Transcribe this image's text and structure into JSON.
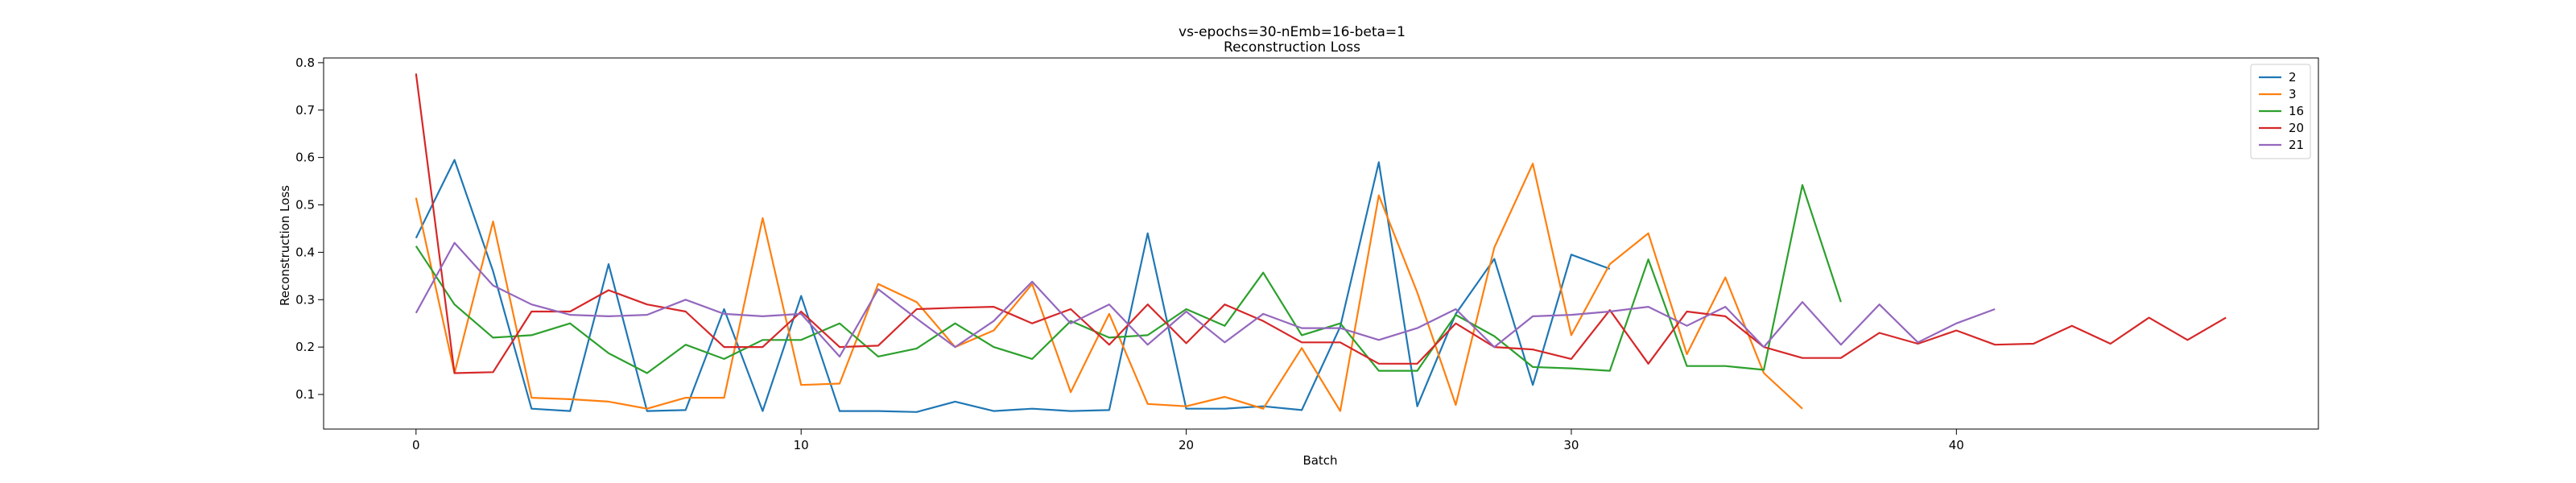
{
  "chart_data": {
    "type": "line",
    "title": "vs-epochs=30-nEmb=16-beta=1",
    "subtitle": "Reconstruction Loss",
    "xlabel": "Batch",
    "ylabel": "Reconstruction Loss",
    "xlim": [
      -2.4,
      49.4
    ],
    "ylim": [
      0.027,
      0.81
    ],
    "xticks": [
      0,
      10,
      20,
      30,
      40
    ],
    "yticks": [
      0.1,
      0.2,
      0.3,
      0.4,
      0.5,
      0.6,
      0.7,
      0.8
    ],
    "grid": false,
    "legend_position": "top-right",
    "series": [
      {
        "name": "2",
        "color": "#1f77b4",
        "values": [
          0.43,
          0.595,
          0.36,
          0.07,
          0.065,
          0.375,
          0.065,
          0.067,
          0.28,
          0.065,
          0.308,
          0.065,
          0.065,
          0.063,
          0.085,
          0.065,
          0.07,
          0.065,
          0.067,
          0.44,
          0.07,
          0.07,
          0.075,
          0.067,
          0.243,
          0.59,
          0.075,
          0.27,
          0.386,
          0.12,
          0.395,
          0.365
        ]
      },
      {
        "name": "3",
        "color": "#ff7f0e",
        "values": [
          0.515,
          0.145,
          0.465,
          0.093,
          0.09,
          0.085,
          0.07,
          0.093,
          0.093,
          0.472,
          0.12,
          0.123,
          0.333,
          0.295,
          0.2,
          0.235,
          0.333,
          0.105,
          0.27,
          0.08,
          0.075,
          0.095,
          0.07,
          0.198,
          0.065,
          0.52,
          0.315,
          0.078,
          0.41,
          0.587,
          0.225,
          0.375,
          0.44,
          0.185,
          0.347,
          0.145,
          0.07
        ]
      },
      {
        "name": "16",
        "color": "#2ca02c",
        "values": [
          0.413,
          0.29,
          0.22,
          0.225,
          0.25,
          0.187,
          0.145,
          0.205,
          0.175,
          0.215,
          0.215,
          0.25,
          0.18,
          0.197,
          0.25,
          0.2,
          0.175,
          0.255,
          0.22,
          0.225,
          0.28,
          0.245,
          0.357,
          0.225,
          0.25,
          0.15,
          0.15,
          0.268,
          0.223,
          0.158,
          0.155,
          0.15,
          0.385,
          0.16,
          0.16,
          0.152,
          0.542,
          0.295
        ]
      },
      {
        "name": "20",
        "color": "#d62728",
        "values": [
          0.777,
          0.145,
          0.147,
          0.275,
          0.275,
          0.32,
          0.29,
          0.275,
          0.2,
          0.2,
          0.275,
          0.2,
          0.203,
          0.28,
          0.283,
          0.285,
          0.25,
          0.28,
          0.205,
          0.29,
          0.208,
          0.29,
          0.255,
          0.21,
          0.21,
          0.165,
          0.165,
          0.25,
          0.2,
          0.195,
          0.175,
          0.278,
          0.165,
          0.275,
          0.265,
          0.2,
          0.177,
          0.177,
          0.23,
          0.207,
          0.235,
          0.205,
          0.207,
          0.245,
          0.207,
          0.262,
          0.215,
          0.262
        ]
      },
      {
        "name": "21",
        "color": "#9467bd",
        "values": [
          0.272,
          0.42,
          0.33,
          0.29,
          0.268,
          0.265,
          0.268,
          0.3,
          0.27,
          0.265,
          0.27,
          0.18,
          0.322,
          0.26,
          0.2,
          0.255,
          0.338,
          0.25,
          0.29,
          0.205,
          0.275,
          0.21,
          0.27,
          0.24,
          0.24,
          0.215,
          0.24,
          0.28,
          0.2,
          0.265,
          0.268,
          0.275,
          0.285,
          0.245,
          0.285,
          0.2,
          0.295,
          0.205,
          0.29,
          0.21,
          0.25,
          0.28
        ]
      }
    ]
  }
}
